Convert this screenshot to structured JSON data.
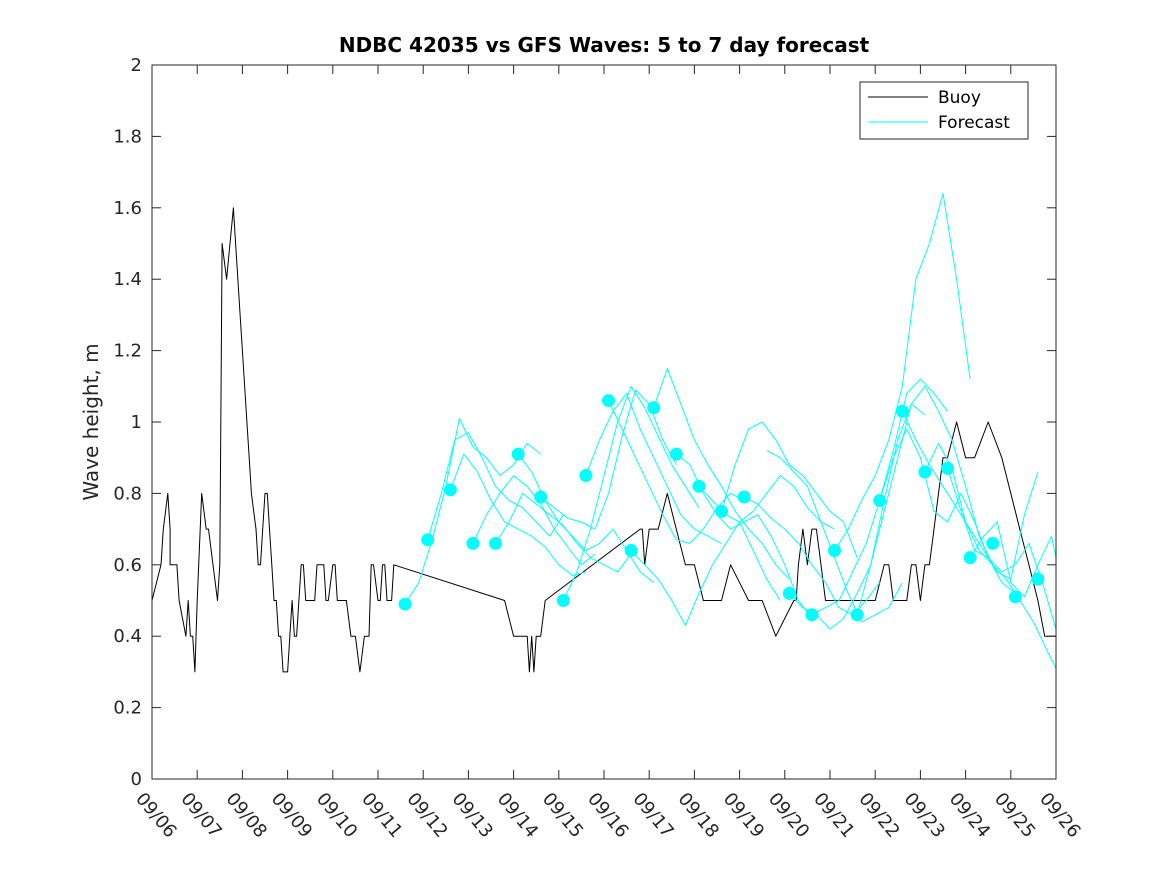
{
  "chart_data": {
    "type": "line",
    "title": "NDBC 42035 vs GFS Waves: 5 to 7 day forecast",
    "xlabel": "",
    "ylabel": "Wave height, m",
    "xlim": [
      0,
      20
    ],
    "ylim": [
      0,
      2
    ],
    "yticks": [
      0,
      0.2,
      0.4,
      0.6,
      0.8,
      1,
      1.2,
      1.4,
      1.6,
      1.8,
      2
    ],
    "ytick_labels": [
      "0",
      "0.2",
      "0.4",
      "0.6",
      "0.8",
      "1",
      "1.2",
      "1.4",
      "1.6",
      "1.8",
      "2"
    ],
    "xtick_labels": [
      "09/06",
      "09/07",
      "09/08",
      "09/09",
      "09/10",
      "09/11",
      "09/12",
      "09/13",
      "09/14",
      "09/15",
      "09/16",
      "09/17",
      "09/18",
      "09/19",
      "09/20",
      "09/21",
      "09/22",
      "09/23",
      "09/24",
      "09/25",
      "09/26"
    ],
    "x_units": "days since 09/06 00:00",
    "legend": {
      "location": "top-right",
      "entries": [
        {
          "label": "Buoy",
          "color": "#000000"
        },
        {
          "label": "Forecast",
          "color": "#00ffff"
        }
      ]
    },
    "series": [
      {
        "name": "Buoy",
        "color": "#000000",
        "x": [
          0,
          0.2,
          0.25,
          0.35,
          0.4,
          0.4,
          0.45,
          0.5,
          0.55,
          0.6,
          0.75,
          0.8,
          0.85,
          0.9,
          0.9,
          0.95,
          0.95,
          1.0,
          1.1,
          1.2,
          1.25,
          1.35,
          1.45,
          1.5,
          1.55,
          1.65,
          1.8,
          1.85,
          1.95,
          2.0,
          2.1,
          2.15,
          2.2,
          2.3,
          2.35,
          2.4,
          2.45,
          2.5,
          2.55,
          2.6,
          2.65,
          2.7,
          2.75,
          2.8,
          2.85,
          2.9,
          3.0,
          3.1,
          3.15,
          3.2,
          3.3,
          3.35,
          3.4,
          3.6,
          3.65,
          3.7,
          3.8,
          3.85,
          3.9,
          4.0,
          4.05,
          4.1,
          4.2,
          4.3,
          4.4,
          4.45,
          4.5,
          4.6,
          4.7,
          4.8,
          4.85,
          4.9,
          5.0,
          5.05,
          5.1,
          5.15,
          5.2,
          5.3,
          5.35,
          7.8,
          8.0,
          8.3,
          8.35,
          8.4,
          8.45,
          8.5,
          8.55,
          8.6,
          8.7,
          10.8,
          10.85,
          10.9,
          11.0,
          11.2,
          11.4,
          11.6,
          11.8,
          12.0,
          12.2,
          12.4,
          12.6,
          12.8,
          13.2,
          13.5,
          13.8,
          14.2,
          14.25,
          14.3,
          14.4,
          14.5,
          14.6,
          14.7,
          14.8,
          14.9,
          15.0,
          15.2,
          15.5,
          15.8,
          16.0,
          16.2,
          16.3,
          16.4,
          16.5,
          16.6,
          16.7,
          16.8,
          16.9,
          17.0,
          17.1,
          17.2,
          17.3,
          17.4,
          17.5,
          17.6,
          17.8,
          18.0,
          18.2,
          18.5,
          18.8,
          19.0,
          19.2,
          19.4,
          19.6,
          19.75,
          19.8,
          20.0
        ],
        "values": [
          0.5,
          0.6,
          0.7,
          0.8,
          0.7,
          0.6,
          0.6,
          0.6,
          0.6,
          0.5,
          0.4,
          0.5,
          0.4,
          0.4,
          0.4,
          0.3,
          0.3,
          0.5,
          0.8,
          0.7,
          0.7,
          0.6,
          0.5,
          0.6,
          1.5,
          1.4,
          1.6,
          1.5,
          1.3,
          1.2,
          1.0,
          0.9,
          0.8,
          0.7,
          0.6,
          0.6,
          0.7,
          0.8,
          0.8,
          0.7,
          0.6,
          0.5,
          0.5,
          0.4,
          0.4,
          0.3,
          0.3,
          0.5,
          0.4,
          0.4,
          0.6,
          0.6,
          0.5,
          0.5,
          0.6,
          0.6,
          0.6,
          0.5,
          0.5,
          0.6,
          0.6,
          0.5,
          0.5,
          0.5,
          0.4,
          0.4,
          0.4,
          0.3,
          0.4,
          0.4,
          0.6,
          0.6,
          0.5,
          0.5,
          0.6,
          0.6,
          0.5,
          0.5,
          0.6,
          0.5,
          0.4,
          0.4,
          0.3,
          0.4,
          0.3,
          0.4,
          0.4,
          0.4,
          0.5,
          0.7,
          0.7,
          0.6,
          0.7,
          0.7,
          0.8,
          0.7,
          0.6,
          0.6,
          0.5,
          0.5,
          0.5,
          0.6,
          0.5,
          0.5,
          0.4,
          0.5,
          0.5,
          0.6,
          0.7,
          0.6,
          0.7,
          0.7,
          0.6,
          0.5,
          0.5,
          0.5,
          0.5,
          0.5,
          0.5,
          0.6,
          0.6,
          0.5,
          0.5,
          0.5,
          0.5,
          0.6,
          0.6,
          0.5,
          0.6,
          0.6,
          0.7,
          0.8,
          0.9,
          0.9,
          1.0,
          0.9,
          0.9,
          1.0,
          0.9,
          0.8,
          0.7,
          0.6,
          0.5,
          0.4,
          0.4,
          0.4
        ]
      },
      {
        "name": "Forecast run 1",
        "color": "#00ffff",
        "x": [
          5.6,
          5.9,
          6.2,
          6.5,
          6.8,
          7.1,
          7.4,
          7.7,
          8.0,
          8.3,
          8.6
        ],
        "values": [
          0.49,
          0.55,
          0.67,
          0.82,
          1.01,
          0.93,
          0.9,
          0.85,
          0.88,
          0.94,
          0.91
        ]
      },
      {
        "name": "Forecast run 2",
        "color": "#00ffff",
        "x": [
          6.1,
          6.4,
          6.7,
          7.0,
          7.3,
          7.6,
          7.9,
          8.2,
          8.5,
          8.8,
          9.1
        ],
        "values": [
          0.67,
          0.8,
          0.95,
          0.97,
          0.9,
          0.82,
          0.78,
          0.76,
          0.72,
          0.68,
          0.74
        ]
      },
      {
        "name": "Forecast run 3",
        "color": "#00ffff",
        "x": [
          6.6,
          6.9,
          7.2,
          7.5,
          7.8,
          8.1,
          8.4,
          8.7,
          9.0,
          9.3,
          9.6
        ],
        "values": [
          0.81,
          0.91,
          0.86,
          0.78,
          0.72,
          0.7,
          0.68,
          0.65,
          0.6,
          0.57,
          0.58
        ]
      },
      {
        "name": "Forecast run 4",
        "color": "#00ffff",
        "x": [
          7.1,
          7.4,
          7.7,
          8.0,
          8.3,
          8.6,
          8.9,
          9.2,
          9.5,
          9.8
        ],
        "values": [
          0.66,
          0.74,
          0.8,
          0.85,
          0.82,
          0.77,
          0.7,
          0.65,
          0.6,
          0.63
        ]
      },
      {
        "name": "Forecast run 5",
        "color": "#00ffff",
        "x": [
          7.6,
          7.9,
          8.2,
          8.5,
          8.8,
          9.1,
          9.4,
          9.7,
          10.0,
          10.3,
          10.6
        ],
        "values": [
          0.66,
          0.72,
          0.8,
          0.77,
          0.74,
          0.71,
          0.66,
          0.62,
          0.6,
          0.58,
          0.63
        ]
      },
      {
        "name": "Forecast run 6",
        "color": "#00ffff",
        "x": [
          8.1,
          8.4,
          8.7,
          9.0,
          9.3,
          9.6,
          9.9,
          10.2,
          10.5,
          10.8,
          11.1
        ],
        "values": [
          0.91,
          0.86,
          0.78,
          0.72,
          0.68,
          0.64,
          0.66,
          0.7,
          0.64,
          0.58,
          0.55
        ]
      },
      {
        "name": "Forecast run 7",
        "color": "#00ffff",
        "x": [
          8.6,
          8.9,
          9.2,
          9.5,
          9.8,
          10.1,
          10.4,
          10.7,
          11.0,
          11.3,
          11.6
        ],
        "values": [
          0.79,
          0.76,
          0.73,
          0.72,
          0.7,
          0.8,
          0.96,
          1.09,
          1.05,
          0.95,
          0.88
        ]
      },
      {
        "name": "Forecast run 8",
        "color": "#00ffff",
        "x": [
          9.1,
          9.4,
          9.7,
          10.0,
          10.3,
          10.6,
          10.9,
          11.2,
          11.5,
          11.8,
          12.1
        ],
        "values": [
          0.5,
          0.58,
          0.7,
          0.85,
          1.0,
          1.1,
          1.04,
          0.96,
          0.88,
          0.82,
          0.76
        ]
      },
      {
        "name": "Forecast run 9",
        "color": "#00ffff",
        "x": [
          9.6,
          9.9,
          10.2,
          10.5,
          10.8,
          11.1,
          11.4,
          11.7,
          12.0,
          12.3,
          12.6
        ],
        "values": [
          0.85,
          0.95,
          1.03,
          1.08,
          0.98,
          0.9,
          0.82,
          0.74,
          0.7,
          0.68,
          0.66
        ]
      },
      {
        "name": "Forecast run 10",
        "color": "#00ffff",
        "x": [
          10.1,
          10.4,
          10.7,
          11.0,
          11.3,
          11.6,
          11.9,
          12.2,
          12.5,
          12.8,
          13.1
        ],
        "values": [
          1.06,
          0.98,
          0.9,
          0.82,
          0.74,
          0.67,
          0.66,
          0.7,
          0.76,
          0.8,
          0.78
        ]
      },
      {
        "name": "Forecast run 11",
        "color": "#00ffff",
        "x": [
          10.6,
          10.9,
          11.2,
          11.5,
          11.8,
          12.1,
          12.4,
          12.7,
          13.0,
          13.3,
          13.6,
          13.9
        ],
        "values": [
          0.64,
          0.6,
          0.56,
          0.5,
          0.43,
          0.52,
          0.6,
          0.66,
          0.72,
          0.64,
          0.56,
          0.5
        ]
      },
      {
        "name": "Forecast run 12",
        "color": "#00ffff",
        "x": [
          11.1,
          11.4,
          11.7,
          12.0,
          12.3,
          12.6,
          12.9,
          13.2,
          13.5,
          13.8,
          14.1
        ],
        "values": [
          1.04,
          1.15,
          1.05,
          0.95,
          0.88,
          0.82,
          0.75,
          0.7,
          0.66,
          0.6,
          0.56
        ]
      },
      {
        "name": "Forecast run 13",
        "color": "#00ffff",
        "x": [
          11.6,
          11.9,
          12.2,
          12.5,
          12.8,
          13.1,
          13.4,
          13.7,
          14.0,
          14.3,
          14.6
        ],
        "values": [
          0.91,
          0.88,
          0.8,
          0.74,
          0.7,
          0.72,
          0.74,
          0.68,
          0.6,
          0.5,
          0.45
        ]
      },
      {
        "name": "Forecast run 14",
        "color": "#00ffff",
        "x": [
          12.1,
          12.4,
          12.7,
          13.0,
          13.3,
          13.6,
          13.9,
          14.2,
          14.5,
          14.8,
          15.1
        ],
        "values": [
          0.82,
          0.78,
          0.74,
          0.72,
          0.75,
          0.8,
          0.85,
          0.82,
          0.76,
          0.72,
          0.7
        ]
      },
      {
        "name": "Forecast run 15",
        "color": "#00ffff",
        "x": [
          12.6,
          12.9,
          13.2,
          13.5,
          13.8,
          14.1,
          14.4,
          14.7,
          15.0,
          15.3,
          15.6
        ],
        "values": [
          0.75,
          0.88,
          0.98,
          1.0,
          0.95,
          0.88,
          0.85,
          0.8,
          0.75,
          0.72,
          0.62
        ]
      },
      {
        "name": "Forecast run 16",
        "color": "#00ffff",
        "x": [
          13.1,
          13.4,
          13.7,
          14.0,
          14.3,
          14.6,
          14.9,
          15.2,
          15.5,
          15.8,
          16.1
        ],
        "values": [
          0.79,
          0.77,
          0.73,
          0.7,
          0.66,
          0.6,
          0.55,
          0.48,
          0.46,
          0.5,
          0.55
        ]
      },
      {
        "name": "Forecast run 17",
        "color": "#00ffff",
        "x": [
          13.6,
          13.9,
          14.2,
          14.5,
          14.8,
          15.1,
          15.4,
          15.7,
          16.0,
          16.3,
          16.6
        ],
        "values": [
          0.92,
          0.9,
          0.86,
          0.82,
          0.72,
          0.62,
          0.52,
          0.44,
          0.46,
          0.48,
          0.55
        ]
      },
      {
        "name": "Forecast run 18",
        "color": "#00ffff",
        "x": [
          14.1,
          14.4,
          14.7,
          15.0,
          15.3,
          15.6,
          15.9,
          16.2,
          16.5,
          16.8,
          17.1
        ],
        "values": [
          0.52,
          0.48,
          0.46,
          0.42,
          0.45,
          0.52,
          0.6,
          0.75,
          0.9,
          1.05,
          1.02
        ]
      },
      {
        "name": "Forecast run 19",
        "color": "#00ffff",
        "x": [
          14.6,
          14.9,
          15.2,
          15.5,
          15.8,
          16.1,
          16.4,
          16.7,
          17.0,
          17.3,
          17.6
        ],
        "values": [
          0.46,
          0.48,
          0.5,
          0.58,
          0.66,
          0.78,
          0.92,
          1.08,
          1.12,
          1.08,
          1.03
        ]
      },
      {
        "name": "Forecast run 20",
        "color": "#00ffff",
        "x": [
          15.1,
          15.4,
          15.7,
          16.0,
          16.3,
          16.6,
          16.9,
          17.2,
          17.5,
          17.8,
          18.1
        ],
        "values": [
          0.64,
          0.7,
          0.78,
          0.85,
          0.95,
          1.1,
          1.4,
          1.5,
          1.64,
          1.4,
          1.12
        ]
      },
      {
        "name": "Forecast run 21",
        "color": "#00ffff",
        "x": [
          15.6,
          15.9,
          16.2,
          16.5,
          16.8,
          17.1,
          17.4,
          17.7,
          18.0,
          18.3,
          18.6
        ],
        "values": [
          0.46,
          0.6,
          0.78,
          0.95,
          1.05,
          1.1,
          1.03,
          0.95,
          0.82,
          0.68,
          0.6
        ]
      },
      {
        "name": "Forecast run 22",
        "color": "#00ffff",
        "x": [
          16.1,
          16.4,
          16.7,
          17.0,
          17.3,
          17.6,
          17.9,
          18.2,
          18.5,
          18.8,
          19.1
        ],
        "values": [
          0.78,
          0.9,
          0.98,
          0.9,
          0.75,
          0.72,
          0.8,
          0.72,
          0.62,
          0.55,
          0.52
        ]
      },
      {
        "name": "Forecast run 23",
        "color": "#00ffff",
        "x": [
          16.6,
          16.9,
          17.2,
          17.5,
          17.8,
          18.1,
          18.4,
          18.7,
          19.0,
          19.3,
          19.6
        ],
        "values": [
          1.03,
          0.95,
          0.88,
          0.82,
          0.76,
          0.7,
          0.64,
          0.58,
          0.56,
          0.74,
          0.86
        ]
      },
      {
        "name": "Forecast run 24",
        "color": "#00ffff",
        "x": [
          17.1,
          17.4,
          17.7,
          18.0,
          18.3,
          18.6,
          18.9,
          19.2,
          19.5,
          19.8,
          20.0
        ],
        "values": [
          0.86,
          0.94,
          0.87,
          0.72,
          0.64,
          0.6,
          0.56,
          0.5,
          0.44,
          0.36,
          0.31
        ]
      },
      {
        "name": "Forecast run 25",
        "color": "#00ffff",
        "x": [
          17.6,
          17.9,
          18.2,
          18.5,
          18.8,
          19.1,
          19.4,
          19.7,
          20.0
        ],
        "values": [
          0.87,
          0.75,
          0.64,
          0.62,
          0.58,
          0.6,
          0.66,
          0.55,
          0.42
        ]
      },
      {
        "name": "Forecast run 26",
        "color": "#00ffff",
        "x": [
          18.1,
          18.4,
          18.7,
          19.0,
          19.3,
          19.6,
          19.9,
          20.0
        ],
        "values": [
          0.62,
          0.68,
          0.72,
          0.55,
          0.51,
          0.6,
          0.68,
          0.62
        ]
      }
    ],
    "markers": {
      "name": "Forecast",
      "color": "#00ffff",
      "x": [
        5.6,
        6.1,
        6.6,
        7.1,
        7.6,
        8.1,
        8.6,
        9.1,
        9.6,
        10.1,
        10.6,
        11.1,
        11.6,
        12.1,
        12.6,
        13.1,
        14.1,
        14.6,
        15.1,
        15.6,
        16.1,
        16.6,
        17.1,
        17.6,
        18.1,
        18.6,
        19.1,
        19.6
      ],
      "values": [
        0.49,
        0.67,
        0.81,
        0.66,
        0.66,
        0.91,
        0.79,
        0.5,
        0.85,
        1.06,
        0.64,
        1.04,
        0.91,
        0.82,
        0.75,
        0.79,
        0.52,
        0.46,
        0.64,
        0.46,
        0.78,
        1.03,
        0.86,
        0.87,
        0.62,
        0.66,
        0.51,
        0.56
      ]
    }
  }
}
